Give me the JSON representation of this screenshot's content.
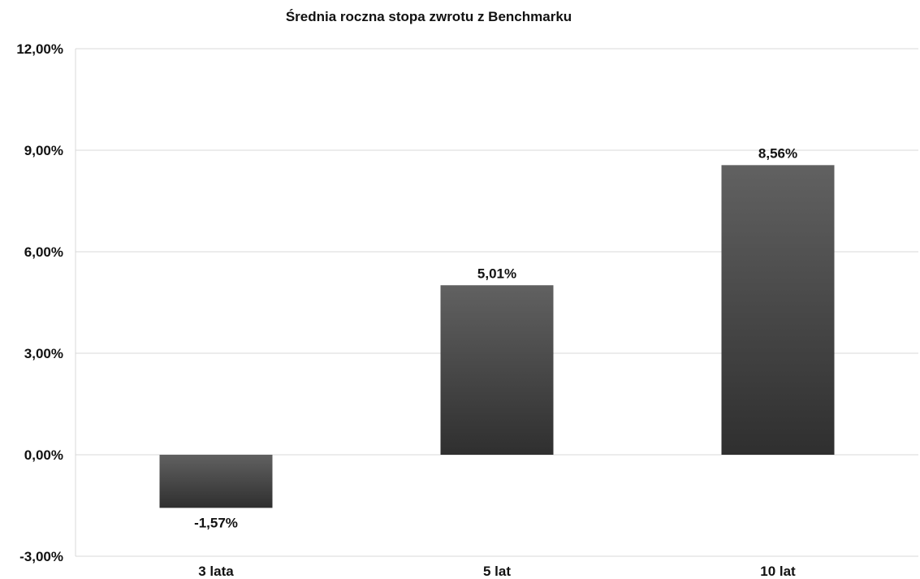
{
  "chart_data": {
    "type": "bar",
    "title": "Średnia roczna stopa zwrotu z Benchmarku",
    "categories": [
      "3 lata",
      "5 lat",
      "10 lat"
    ],
    "values": [
      -1.57,
      5.01,
      8.56
    ],
    "value_labels": [
      "-1,57%",
      "5,01%",
      "8,56%"
    ],
    "ylim": [
      -3,
      12
    ],
    "yticks": [
      12,
      9,
      6,
      3,
      0,
      -3
    ],
    "ytick_labels": [
      "12,00%",
      "9,00%",
      "6,00%",
      "3,00%",
      "0,00%",
      "-3,00%"
    ],
    "grid": true,
    "legend": "none",
    "bar_color_top": "#616161",
    "bar_color_bottom": "#2f2f2f",
    "grid_color": "#d9d9d9"
  }
}
